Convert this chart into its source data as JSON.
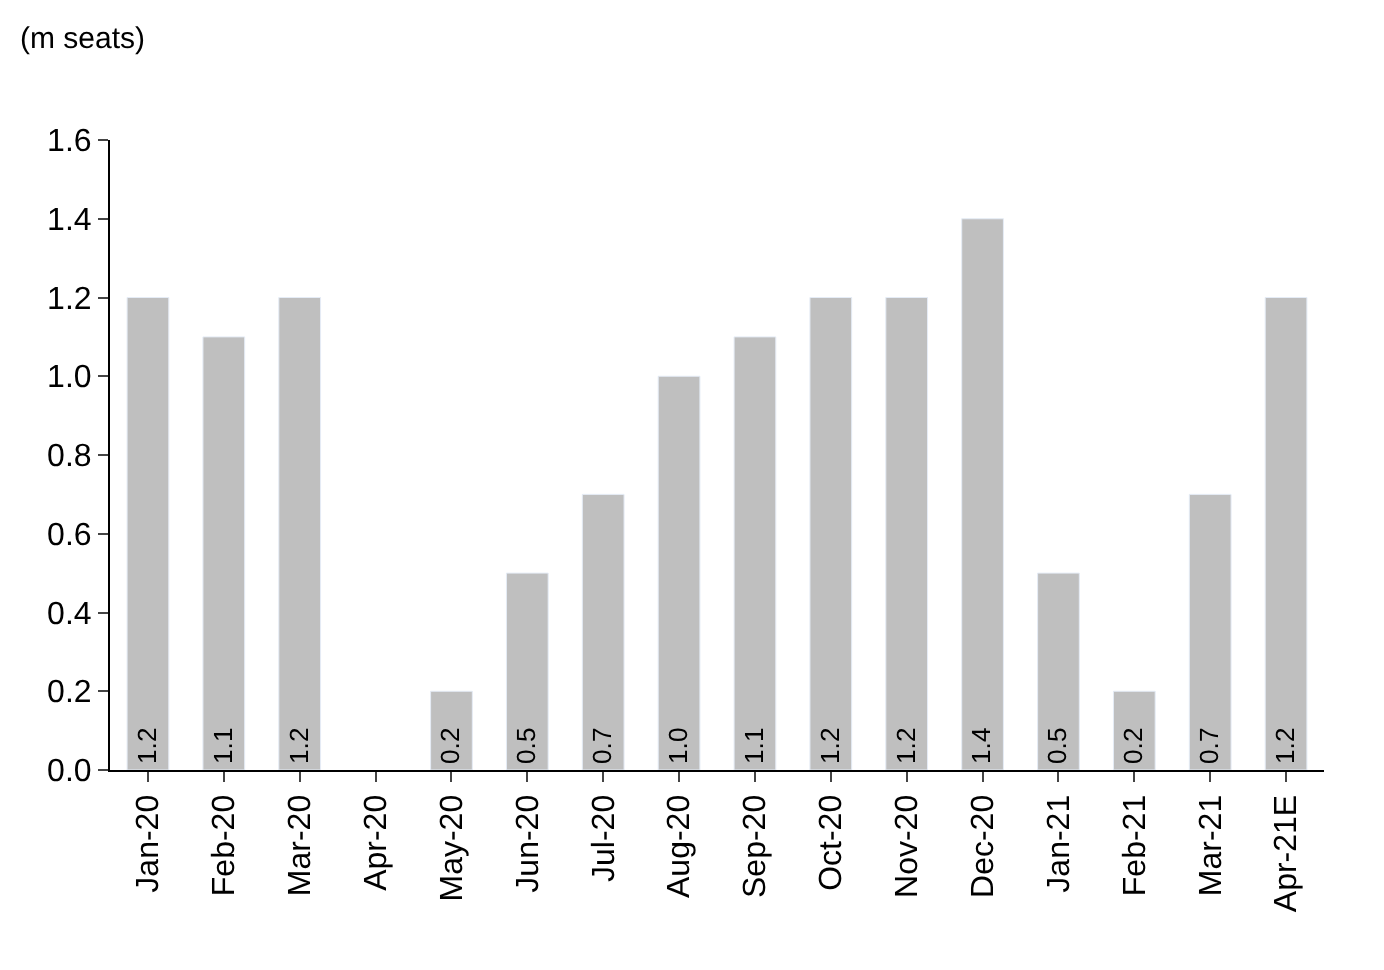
{
  "chart_data": {
    "type": "bar",
    "ylabel": "(m seats)",
    "categories": [
      "Jan-20",
      "Feb-20",
      "Mar-20",
      "Apr-20",
      "May-20",
      "Jun-20",
      "Jul-20",
      "Aug-20",
      "Sep-20",
      "Oct-20",
      "Nov-20",
      "Dec-20",
      "Jan-21",
      "Feb-21",
      "Mar-21",
      "Apr-21E"
    ],
    "series": [
      {
        "color": "#bfbfbf",
        "values": [
          1.2,
          1.1,
          1.2,
          null,
          0.2,
          0.5,
          0.7,
          1.0,
          1.1,
          1.2,
          1.2,
          1.4,
          0.5,
          0.2,
          0.7,
          1.2
        ],
        "value_labels": [
          "1.2",
          "1.1",
          "1.2",
          null,
          "0.2",
          "0.5",
          "0.7",
          "1.0",
          "1.1",
          "1.2",
          "1.2",
          "1.4",
          "0.5",
          "0.2",
          "0.7",
          "1.2"
        ]
      }
    ],
    "ylim": [
      0,
      1.6
    ],
    "yticks": [
      {
        "value": 0,
        "label": "0.0"
      },
      {
        "value": 0.2,
        "label": "0.2"
      },
      {
        "value": 0.4,
        "label": "0.4"
      },
      {
        "value": 0.6,
        "label": "0.6"
      },
      {
        "value": 0.8,
        "label": "0.8"
      },
      {
        "value": 1.0,
        "label": "1.0"
      },
      {
        "value": 1.2,
        "label": "1.2"
      },
      {
        "value": 1.4,
        "label": "1.4"
      },
      {
        "value": 1.6,
        "label": "1.6"
      }
    ]
  }
}
